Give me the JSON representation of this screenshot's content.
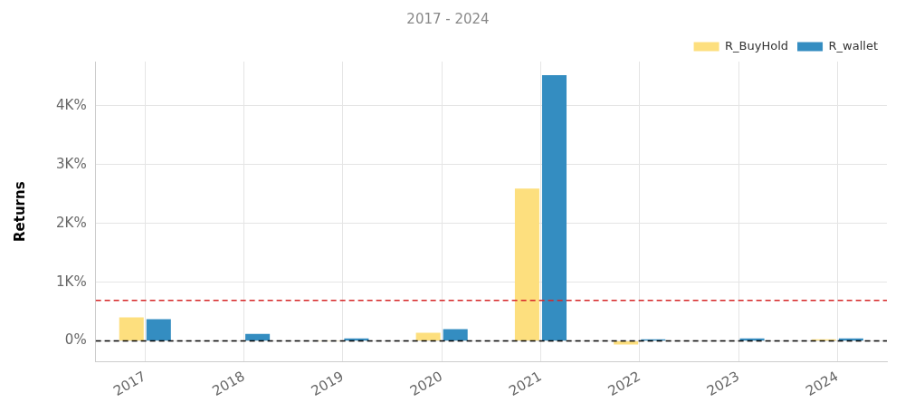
{
  "chart_data": {
    "type": "bar",
    "subtitle": "2017 - 2024",
    "y_label": "Returns",
    "categories": [
      "2017",
      "2018",
      "2019",
      "2020",
      "2021",
      "2022",
      "2023",
      "2024"
    ],
    "series": [
      {
        "name": "R_BuyHold",
        "color": "#fddf7e",
        "values": [
          400,
          -5,
          5,
          140,
          2590,
          -60,
          10,
          30
        ]
      },
      {
        "name": "R_wallet",
        "color": "#348dc1",
        "values": [
          370,
          120,
          45,
          200,
          4520,
          30,
          45,
          45
        ]
      }
    ],
    "ylim": [
      -350,
      4750
    ],
    "yticks": [
      {
        "value": 0,
        "label": "0%"
      },
      {
        "value": 1000,
        "label": "1K%"
      },
      {
        "value": 2000,
        "label": "2K%"
      },
      {
        "value": 3000,
        "label": "3K%"
      },
      {
        "value": 4000,
        "label": "4K%"
      }
    ],
    "hlines": [
      {
        "value": 690,
        "color": "#d62728",
        "line_style": "dashed"
      },
      {
        "value": 0,
        "color": "#000000",
        "line_style": "dashed"
      }
    ],
    "grid": true,
    "legend": "upper right"
  }
}
